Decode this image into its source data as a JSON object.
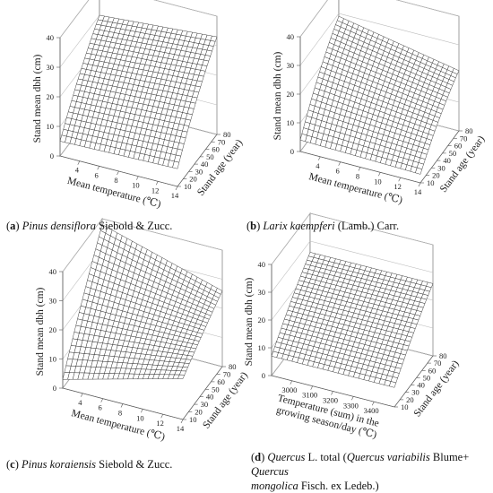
{
  "charts": [
    {
      "caption": {
        "letter": "a",
        "italic": "Pinus densiflora",
        "rest": " Siebold & Zucc."
      },
      "chart_data": {
        "type": "surface",
        "xlabel": "Mean temperature (℃)",
        "ylabel": "Stand age (year)",
        "zlabel": "Stand mean dbh (cm)",
        "xlim": [
          2,
          14
        ],
        "ylim": [
          10,
          80
        ],
        "zlim": [
          0,
          40
        ],
        "x_ticks": [
          "4",
          "6",
          "8",
          "10",
          "12",
          "14"
        ],
        "y_ticks": [
          "10",
          "20",
          "30",
          "40",
          "50",
          "60",
          "70",
          "80"
        ],
        "z_ticks": [
          "0",
          "10",
          "20",
          "30",
          "40"
        ],
        "z_corners": {
          "xmin_ymin": 5,
          "xmax_ymin": 6,
          "xmin_ymax": 30,
          "xmax_ymax": 33
        },
        "curvature": 0.25
      }
    },
    {
      "caption": {
        "letter": "b",
        "italic": "Larix kaempferi",
        "rest": " (Lamb.) Carr."
      },
      "chart_data": {
        "type": "surface",
        "xlabel": "Mean temperature (℃)",
        "ylabel": "Stand age (year)",
        "zlabel": "Stand mean dbh (cm)",
        "xlim": [
          2,
          14
        ],
        "ylim": [
          10,
          80
        ],
        "zlim": [
          0,
          40
        ],
        "x_ticks": [
          "4",
          "6",
          "8",
          "10",
          "12",
          "14"
        ],
        "y_ticks": [
          "10",
          "20",
          "30",
          "40",
          "50",
          "60",
          "70",
          "80"
        ],
        "z_ticks": [
          "0",
          "10",
          "20",
          "30",
          "40"
        ],
        "z_corners": {
          "xmin_ymin": 4,
          "xmax_ymin": 3,
          "xmin_ymax": 29,
          "xmax_ymax": 21
        },
        "curvature": 0.35
      }
    },
    {
      "caption": {
        "letter": "c",
        "italic": "Pinus koraiensis",
        "rest": " Siebold & Zucc."
      },
      "chart_data": {
        "type": "surface",
        "xlabel": "Mean temperature (℃)",
        "ylabel": "Stand age (year)",
        "zlabel": "Stand mean dbh (cm)",
        "xlim": [
          2,
          14
        ],
        "ylim": [
          10,
          80
        ],
        "zlim": [
          0,
          40
        ],
        "x_ticks": [
          "4",
          "6",
          "8",
          "10",
          "12",
          "14"
        ],
        "y_ticks": [
          "10",
          "20",
          "30",
          "40",
          "50",
          "60",
          "70",
          "80"
        ],
        "z_ticks": [
          "0",
          "10",
          "20",
          "30",
          "40"
        ],
        "z_corners": {
          "xmin_ymin": 3,
          "xmax_ymin": 14,
          "xmin_ymax": 38,
          "xmax_ymax": 26
        },
        "curvature": 0.1
      }
    },
    {
      "caption": {
        "letter": "d",
        "lines": [
          [
            {
              "t": "Quercus",
              "i": true
            },
            {
              "t": " L. total (",
              "i": false
            },
            {
              "t": "Quercus variabilis",
              "i": true
            },
            {
              "t": " Blume+ ",
              "i": false
            },
            {
              "t": "Quercus",
              "i": true
            }
          ],
          [
            {
              "t": "mongolica",
              "i": true
            },
            {
              "t": " Fisch. ex Ledeb.)",
              "i": false
            }
          ]
        ]
      },
      "chart_data": {
        "type": "surface",
        "xlabel": "Temperature (sum) in the growing season/day (℃)",
        "xlabel_lines": [
          "Temperature (sum) in the",
          "growing season/day (℃)"
        ],
        "ylabel": "Stand age (year)",
        "zlabel": "Stand mean dbh (cm)",
        "xlim": [
          2900,
          3500
        ],
        "ylim": [
          10,
          80
        ],
        "zlim": [
          0,
          40
        ],
        "x_ticks": [
          "3000",
          "3100",
          "3200",
          "3300",
          "3400"
        ],
        "y_ticks": [
          "10",
          "20",
          "30",
          "40",
          "50",
          "60",
          "70",
          "80"
        ],
        "z_ticks": [
          "0",
          "10",
          "20",
          "30",
          "40"
        ],
        "z_corners": {
          "xmin_ymin": 7,
          "xmax_ymin": 7,
          "xmin_ymax": 26,
          "xmax_ymax": 26
        },
        "curvature": 0.2
      }
    }
  ]
}
